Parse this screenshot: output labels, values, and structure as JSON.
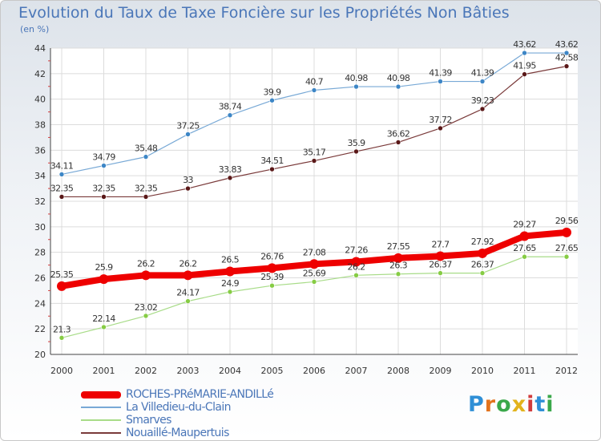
{
  "title": "Evolution du Taux de Taxe Foncière sur les Propriétés Non Bâties",
  "unit": "(en %)",
  "logo_letters": [
    "P",
    "r",
    "o",
    "x",
    "i",
    "t",
    "i"
  ],
  "chart_data": {
    "type": "line",
    "x": [
      "2000",
      "2001",
      "2002",
      "2003",
      "2004",
      "2005",
      "2006",
      "2007",
      "2008",
      "2009",
      "2010",
      "2011",
      "2012"
    ],
    "ylim": [
      20,
      44
    ],
    "yticks": [
      "20",
      "22",
      "24",
      "26",
      "28",
      "30",
      "32",
      "34",
      "36",
      "38",
      "40",
      "42",
      "44"
    ],
    "grid": true,
    "legend": "bottom",
    "series": [
      {
        "name": "La Villedieu-du-Clain",
        "color": "#78a9d6",
        "marker": "#3d86c6",
        "width": 1.2,
        "values": [
          34.11,
          34.79,
          35.48,
          37.25,
          38.74,
          39.9,
          40.7,
          40.98,
          40.98,
          41.39,
          41.39,
          43.62,
          43.62
        ],
        "labels": [
          "34.11",
          "34.79",
          "35.48",
          "37.25",
          "38.74",
          "39.9",
          "40.7",
          "40.98",
          "40.98",
          "41.39",
          "41.39",
          "43.62",
          "43.62"
        ]
      },
      {
        "name": "Nouaillé-Maupertuis",
        "color": "#7a3a3a",
        "marker": "#5a1818",
        "width": 1.2,
        "values": [
          32.35,
          32.35,
          32.35,
          33,
          33.83,
          34.51,
          35.17,
          35.9,
          36.62,
          37.72,
          39.23,
          41.95,
          42.58
        ],
        "labels": [
          "32.35",
          "32.35",
          "32.35",
          "33",
          "33.83",
          "34.51",
          "35.17",
          "35.9",
          "36.62",
          "37.72",
          "39.23",
          "41.95",
          "42.58"
        ]
      },
      {
        "name": "ROCHES-PRéMARIE-ANDILLé",
        "color": "#ee0000",
        "marker": "#ee0000",
        "width": 8,
        "values": [
          25.35,
          25.9,
          26.2,
          26.2,
          26.5,
          26.76,
          27.08,
          27.26,
          27.55,
          27.7,
          27.92,
          29.27,
          29.56
        ],
        "labels": [
          "25.35",
          "25.9",
          "26.2",
          "26.2",
          "26.5",
          "26.76",
          "27.08",
          "27.26",
          "27.55",
          "27.7",
          "27.92",
          "29.27",
          "29.56"
        ]
      },
      {
        "name": "Smarves",
        "color": "#a8dc88",
        "marker": "#86cc44",
        "width": 1.2,
        "values": [
          21.3,
          22.14,
          23.02,
          24.17,
          24.9,
          25.39,
          25.69,
          26.2,
          26.3,
          26.37,
          26.37,
          27.65,
          27.65
        ],
        "labels": [
          "21.3",
          "22.14",
          "23.02",
          "24.17",
          "24.9",
          "25.39",
          "25.69",
          "26.2",
          "26.3",
          "26.37",
          "26.37",
          "27.65",
          "27.65"
        ]
      }
    ],
    "legend_order": [
      2,
      0,
      3,
      1
    ]
  }
}
